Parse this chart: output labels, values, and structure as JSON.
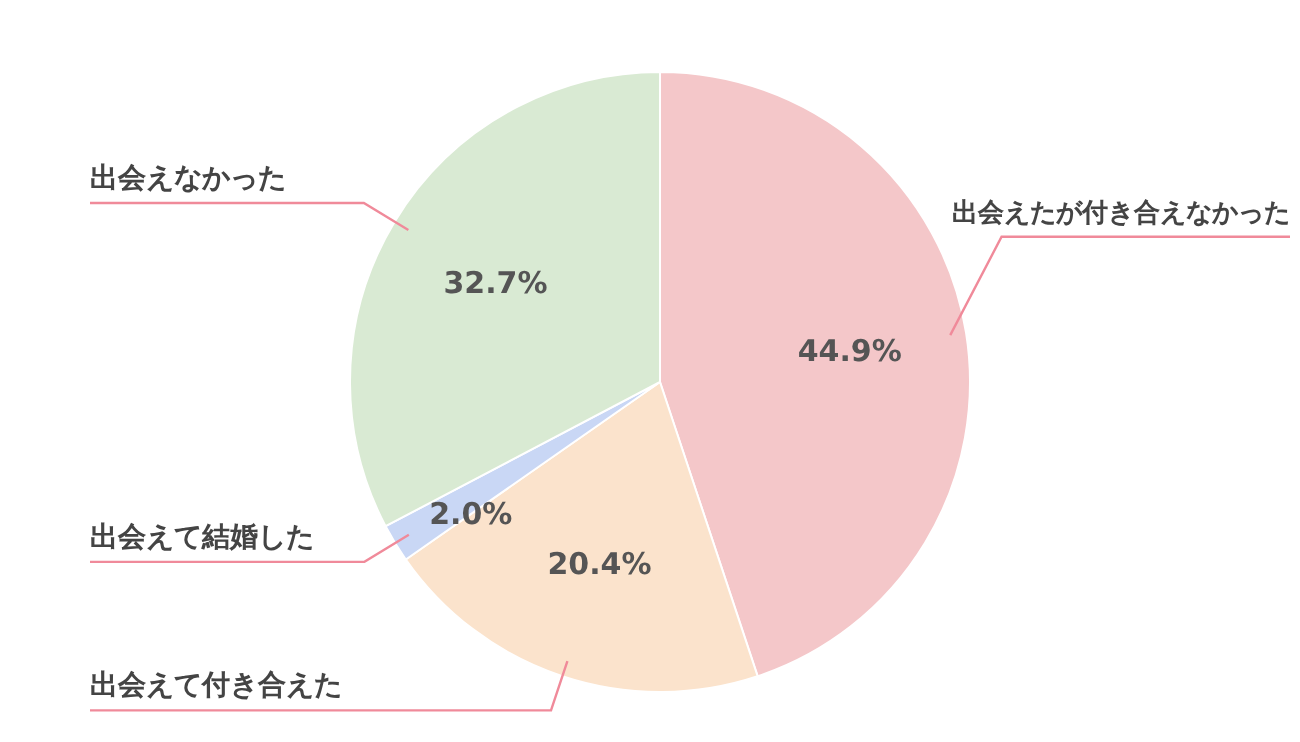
{
  "chart_data": {
    "type": "pie",
    "categories": [
      "出会えたが付き合えなかった",
      "出会えて付き合えた",
      "出会えて結婚した",
      "出会えなかった"
    ],
    "values": [
      44.9,
      20.4,
      2.0,
      32.7
    ],
    "colors": [
      "#f4c7c9",
      "#fbe3cc",
      "#c9d7f5",
      "#d9ead3"
    ],
    "value_labels": [
      "44.9%",
      "20.4%",
      "2.0%",
      "32.7%"
    ]
  }
}
